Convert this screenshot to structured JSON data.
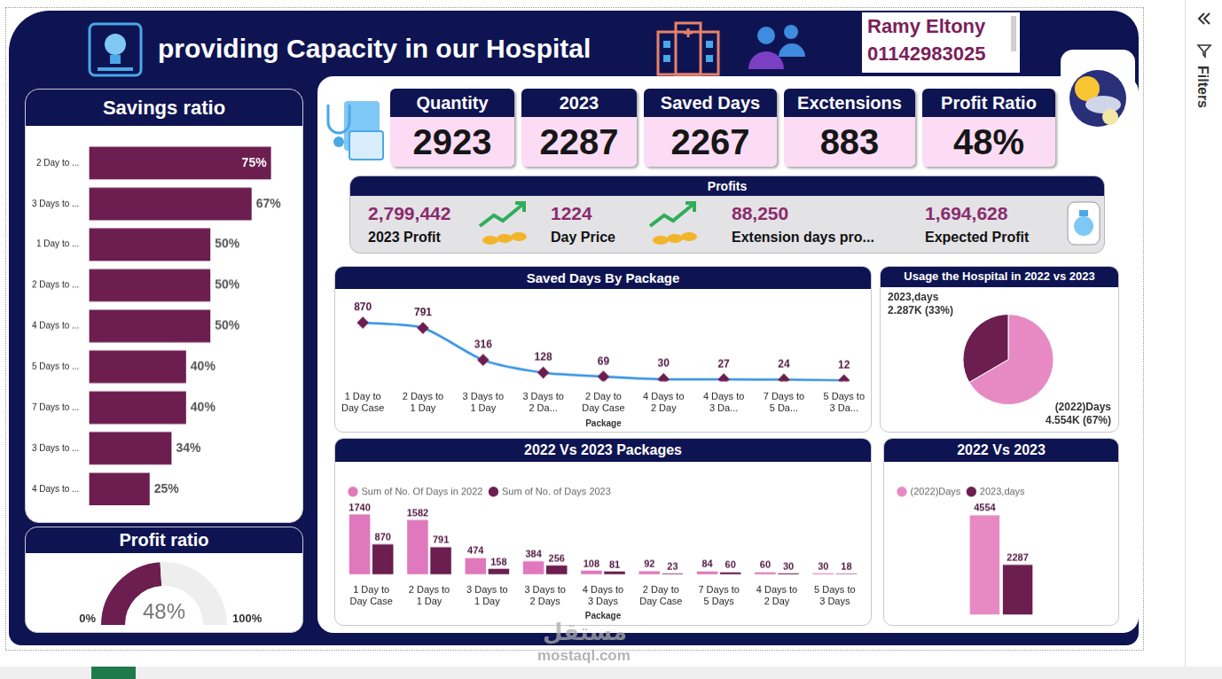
{
  "header": {
    "title": "providing Capacity in our Hospital",
    "author": "Ramy Eltony",
    "phone": "01142983025"
  },
  "kpis": [
    {
      "label": "Quantity",
      "value": 2923
    },
    {
      "label": "2023",
      "value": 2287
    },
    {
      "label": "Saved Days",
      "value": 2267
    },
    {
      "label": "Exctensions",
      "value": 883
    },
    {
      "label": "Profit Ratio",
      "value": 48,
      "value_label": "48%"
    }
  ],
  "profits": {
    "title": "Profits",
    "items": [
      {
        "value": 2799442,
        "value_label": "2,799,442",
        "label": "2023 Profit"
      },
      {
        "value": 1224,
        "label": "Day Price"
      },
      {
        "value": 88250,
        "value_label": "88,250",
        "label": "Extension days pro..."
      },
      {
        "value": 1694628,
        "value_label": "1,694,628",
        "label": "Expected Profit"
      }
    ]
  },
  "chart_data": [
    {
      "type": "bar",
      "orientation": "horizontal",
      "title": "Savings ratio",
      "categories": [
        "2 Day to ...",
        "3 Days to ...",
        "1 Day to ...",
        "2 Days to ...",
        "4 Days to ...",
        "5 Days to ...",
        "7 Days to ...",
        "3 Days to ...",
        "4 Days to ..."
      ],
      "values": [
        75,
        67,
        50,
        50,
        50,
        40,
        40,
        34,
        25
      ],
      "value_labels": [
        "75%",
        "67%",
        "50%",
        "50%",
        "50%",
        "40%",
        "40%",
        "34%",
        "25%"
      ],
      "color": "#6b1e4f",
      "xlim": [
        0,
        85
      ],
      "tick_labels": "y",
      "data_labels": true,
      "grid": false
    },
    {
      "type": "gauge",
      "title": "Profit ratio",
      "values": [
        48
      ],
      "value_labels": [
        "48%"
      ],
      "color": "#6b1e4f",
      "xlim": [
        0,
        100
      ],
      "xticks": [
        {
          "value": 0,
          "label": "0%"
        },
        {
          "value": 100,
          "label": "100%"
        }
      ]
    },
    {
      "type": "line",
      "title": "Saved Days By Package",
      "x_label": "Package",
      "categories": [
        "1 Day to Day Case",
        "2 Days to 1 Day",
        "3 Days to 1 Day",
        "3 Days to 2 Da...",
        "2 Day to Day Case",
        "4 Days to 2 Day",
        "4 Days to 3 Da...",
        "7 Days to 5 Da...",
        "5 Days to 3 Da..."
      ],
      "values": [
        870,
        791,
        316,
        128,
        69,
        30,
        27,
        24,
        12
      ],
      "color": "#2e8ee0",
      "marker": "diamond",
      "ylim": [
        0,
        1000
      ],
      "tick_labels": "x",
      "data_labels": true,
      "grid": false
    },
    {
      "type": "pie",
      "title": "Usage the Hospital in 2022 vs 2023",
      "categories": [
        "(2022)Days",
        "2023,days"
      ],
      "values": [
        4554,
        2287
      ],
      "value_labels": [
        "4.554K (67%)",
        "2.287K (33%)"
      ],
      "colors": [
        "#e78ac3",
        "#6b1e4f"
      ],
      "data_labels": true
    },
    {
      "type": "bar",
      "title": "2022 Vs 2023 Packages",
      "x_label": "Package",
      "categories": [
        "1 Day to Day Case",
        "2 Days to 1 Day",
        "3 Days to 1 Day",
        "3 Days to 2 Days",
        "4 Days to 3 Days",
        "2 Day to Day Case",
        "7 Days to 5 Days",
        "4 Days to 2 Day",
        "5 Days to 3 Days"
      ],
      "series": [
        {
          "name": "Sum of No. Of Days in 2022",
          "color": "#e078bd",
          "values": [
            1740,
            1582,
            474,
            384,
            108,
            92,
            84,
            60,
            30
          ]
        },
        {
          "name": "Sum of No. of Days 2023",
          "color": "#6b1e4f",
          "values": [
            870,
            791,
            158,
            256,
            81,
            23,
            60,
            30,
            18
          ]
        }
      ],
      "ylim": [
        0,
        2000
      ],
      "tick_labels": "x",
      "data_labels": true,
      "legend": "top-left",
      "grid": false
    },
    {
      "type": "bar",
      "title": "2022 Vs 2023",
      "categories": [
        null
      ],
      "series": [
        {
          "name": "(2022)Days",
          "color": "#e78ac3",
          "values": [
            4554
          ]
        },
        {
          "name": "2023,days",
          "color": "#6b1e4f",
          "values": [
            2287
          ]
        }
      ],
      "ylim": [
        0,
        5000
      ],
      "tick_labels": false,
      "data_labels": true,
      "legend": "top-left",
      "grid": false
    }
  ],
  "watermark": [
    "مستقل",
    "mostaql.com"
  ],
  "side_pane": {
    "label": "Filters"
  }
}
